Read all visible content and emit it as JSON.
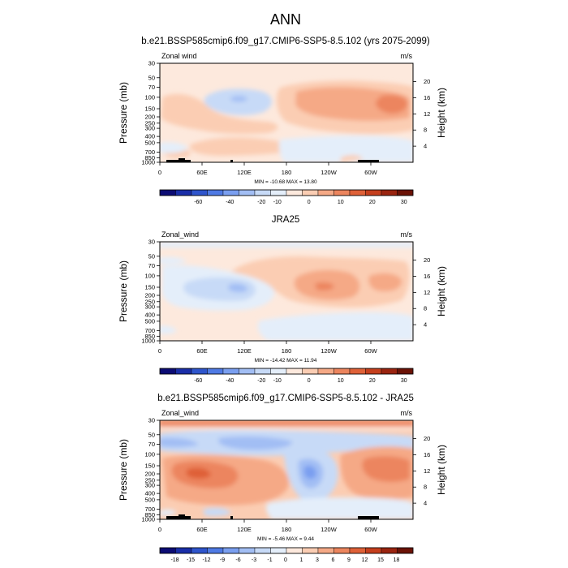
{
  "figure": {
    "title": "ANN"
  },
  "panels": [
    {
      "title": "b.e21.BSSP585cmip6.f09_g17.CMIP6-SSP5-8.5.102 (yrs 2075-2099)",
      "left_label": "Zonal wind",
      "right_label": "m/s",
      "stats": "MIN = -10.68  MAX =  13.80",
      "colorbar_labels": [
        "-60",
        "-40",
        "-20",
        "-10",
        "0",
        "10",
        "20",
        "30"
      ]
    },
    {
      "title": "JRA25",
      "left_label": "Zonal_wind",
      "right_label": "m/s",
      "stats": "MIN = -14.42  MAX =  11.94",
      "colorbar_labels": [
        "-60",
        "-40",
        "-20",
        "-10",
        "0",
        "10",
        "20",
        "30"
      ]
    },
    {
      "title": "b.e21.BSSP585cmip6.f09_g17.CMIP6-SSP5-8.5.102 - JRA25",
      "left_label": "Zonal_wind",
      "right_label": "m/s",
      "stats": "MIN = -5.46  MAX =  9.44",
      "colorbar_labels": [
        "-18",
        "-15",
        "-12",
        "-9",
        "-6",
        "-3",
        "-1",
        "0",
        "1",
        "3",
        "6",
        "9",
        "12",
        "15",
        "18"
      ]
    }
  ],
  "axes": {
    "ylabel": "Pressure (mb)",
    "y2label": "Height (km)",
    "xticks": [
      "0",
      "60E",
      "120E",
      "180",
      "120W",
      "60W"
    ],
    "yticks": [
      "30",
      "50",
      "70",
      "100",
      "150",
      "200",
      "250",
      "300",
      "400",
      "500",
      "700",
      "850",
      "1000"
    ],
    "y2ticks": [
      "20",
      "16",
      "12",
      "8",
      "4"
    ]
  },
  "chart_data": [
    {
      "type": "heatmap",
      "title": "b.e21.BSSP585cmip6.f09_g17.CMIP6-SSP5-8.5.102 (yrs 2075-2099)",
      "xlabel": "",
      "ylabel": "Pressure (mb)",
      "y2label": "Height (km)",
      "y_scale": "log",
      "ylim": [
        1000,
        30
      ],
      "xlim": [
        0,
        360
      ],
      "x_ticks": [
        "0",
        "60E",
        "120E",
        "180",
        "120W",
        "60W"
      ],
      "y_ticks": [
        30,
        50,
        70,
        100,
        150,
        200,
        250,
        300,
        400,
        500,
        700,
        850,
        1000
      ],
      "y2_ticks": [
        20,
        16,
        12,
        8,
        4
      ],
      "units": "m/s",
      "min": -10.68,
      "max": 13.8,
      "contour_levels": [
        -60,
        -50,
        -40,
        -30,
        -20,
        -15,
        -10,
        -5,
        0,
        5,
        10,
        15,
        20,
        25,
        30
      ],
      "colors": [
        "#0c0c74",
        "#1a2ea8",
        "#2f55cc",
        "#4f7ae4",
        "#7a9ff0",
        "#a2bef4",
        "#c7daf7",
        "#e4eefa",
        "#fde9dd",
        "#fbcdb3",
        "#f5a986",
        "#ec855e",
        "#df6138",
        "#c53f1d",
        "#9a2410",
        "#6b1206"
      ],
      "features": [
        {
          "sign": "negative",
          "lon_range": [
            110,
            160
          ],
          "p_range": [
            80,
            150
          ],
          "peak": -2
        },
        {
          "sign": "positive",
          "lon_range": [
            200,
            360
          ],
          "p_range": [
            80,
            250
          ],
          "peak": 13.8,
          "peak_lon": 340,
          "peak_p": 130
        },
        {
          "sign": "positive",
          "lon_range": [
            20,
            180
          ],
          "p_range": [
            100,
            500
          ],
          "peak": 7
        },
        {
          "sign": "positive",
          "lon_range": [
            30,
            170
          ],
          "p_range": [
            550,
            900
          ],
          "peak": 7
        },
        {
          "sign": "negative",
          "lon_range": [
            180,
            360
          ],
          "p_range": [
            450,
            1000
          ],
          "peak": -3
        }
      ]
    },
    {
      "type": "heatmap",
      "title": "JRA25",
      "ylabel": "Pressure (mb)",
      "y2label": "Height (km)",
      "y_scale": "log",
      "ylim": [
        1000,
        30
      ],
      "xlim": [
        0,
        360
      ],
      "x_ticks": [
        "0",
        "60E",
        "120E",
        "180",
        "120W",
        "60W"
      ],
      "units": "m/s",
      "min": -14.42,
      "max": 11.94,
      "contour_levels": [
        -60,
        -50,
        -40,
        -30,
        -20,
        -15,
        -10,
        -5,
        0,
        5,
        10,
        15,
        20,
        25,
        30
      ],
      "features": [
        {
          "sign": "negative",
          "lon_range": [
            20,
            150
          ],
          "p_range": [
            90,
            300
          ],
          "peak": -8,
          "peak_lon": 90,
          "peak_p": 150
        },
        {
          "sign": "positive",
          "lon_range": [
            180,
            330
          ],
          "p_range": [
            70,
            350
          ],
          "peak": 11.94,
          "peak_lon": 230,
          "peak_p": 160
        },
        {
          "sign": "positive",
          "lon_range": [
            270,
            340
          ],
          "p_range": [
            70,
            200
          ],
          "peak": 9
        },
        {
          "sign": "negative",
          "lon_range": [
            180,
            360
          ],
          "p_range": [
            450,
            1000
          ],
          "peak": -3
        }
      ]
    },
    {
      "type": "heatmap",
      "title": "b.e21.BSSP585cmip6.f09_g17.CMIP6-SSP5-8.5.102 - JRA25",
      "ylabel": "Pressure (mb)",
      "y2label": "Height (km)",
      "y_scale": "log",
      "ylim": [
        1000,
        30
      ],
      "xlim": [
        0,
        360
      ],
      "x_ticks": [
        "0",
        "60E",
        "120E",
        "180",
        "120W",
        "60W"
      ],
      "units": "m/s",
      "min": -5.46,
      "max": 9.44,
      "contour_levels": [
        -18,
        -15,
        -12,
        -9,
        -6,
        -3,
        -1,
        0,
        1,
        3,
        6,
        9,
        12,
        15,
        18
      ],
      "features": [
        {
          "sign": "positive",
          "lon_range": [
            0,
            170
          ],
          "p_range": [
            120,
            600
          ],
          "peak": 9.44,
          "peak_lon": 55,
          "peak_p": 200
        },
        {
          "sign": "negative",
          "lon_range": [
            0,
            210
          ],
          "p_range": [
            40,
            90
          ],
          "peak": -4
        },
        {
          "sign": "negative",
          "lon_range": [
            170,
            250
          ],
          "p_range": [
            120,
            400
          ],
          "peak": -5.46,
          "peak_lon": 205,
          "peak_p": 200
        },
        {
          "sign": "positive",
          "lon_range": [
            250,
            360
          ],
          "p_range": [
            80,
            400
          ],
          "peak": 6,
          "peak_lon": 330,
          "peak_p": 150
        },
        {
          "sign": "negative",
          "lon_range": [
            170,
            360
          ],
          "p_range": [
            500,
            1000
          ],
          "peak": -2
        },
        {
          "sign": "positive",
          "lon_range": [
            0,
            360
          ],
          "p_range": [
            30,
            40
          ],
          "peak": 3
        }
      ]
    }
  ]
}
